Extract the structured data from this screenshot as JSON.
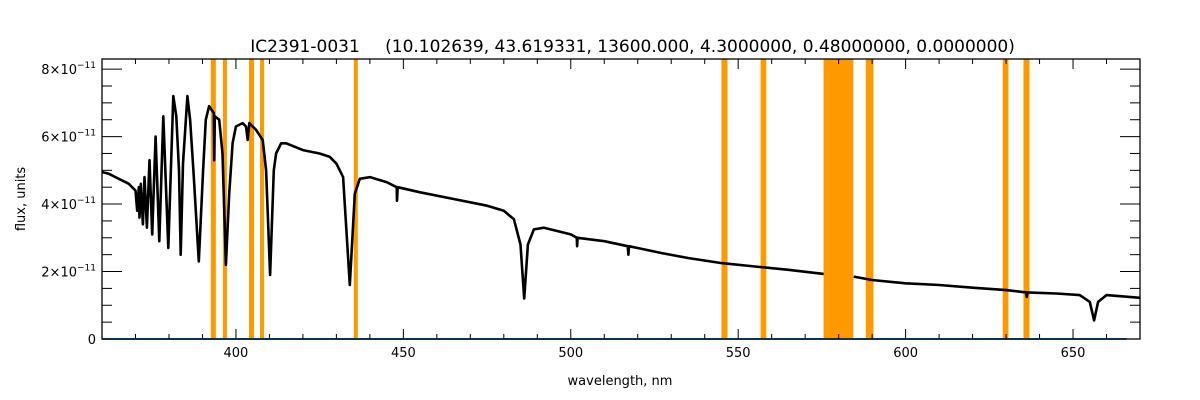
{
  "chart_data": {
    "type": "line",
    "title_object": "IC2391-0031",
    "title_params": "(10.102639, 43.619331, 13600.000, 4.3000000, 0.48000000, 0.0000000)",
    "xlabel": "wavelength, nm",
    "ylabel": "flux, units",
    "xlim": [
      360,
      670
    ],
    "ylim": [
      0,
      8.3e-11
    ],
    "grid": false,
    "x_ticks": [
      400,
      450,
      500,
      550,
      600,
      650
    ],
    "x_tick_labels": [
      "400",
      "450",
      "500",
      "550",
      "600",
      "650"
    ],
    "x_minor_step": 10,
    "y_ticks": [
      0,
      2e-11,
      4e-11,
      6e-11,
      8e-11
    ],
    "y_tick_labels": [
      {
        "base": "0",
        "exp": ""
      },
      {
        "base": "2×10",
        "exp": "−11"
      },
      {
        "base": "4×10",
        "exp": "−11"
      },
      {
        "base": "6×10",
        "exp": "−11"
      },
      {
        "base": "8×10",
        "exp": "−11"
      }
    ],
    "y_minor_step": 5e-12,
    "colors": {
      "spectrum": "#000000",
      "error": "#1f8fff",
      "masked": "#ff9900"
    },
    "masked_bands": [
      [
        392.5,
        394.0
      ],
      [
        396.1,
        397.3
      ],
      [
        403.9,
        405.4
      ],
      [
        407.2,
        408.4
      ],
      [
        435.2,
        436.4
      ],
      [
        545.0,
        546.8
      ],
      [
        556.7,
        558.4
      ],
      [
        575.5,
        584.4
      ],
      [
        588.1,
        590.4
      ],
      [
        629.0,
        630.7
      ],
      [
        635.2,
        637.0
      ]
    ],
    "series": [
      {
        "role": "spectrum",
        "points": [
          [
            360,
            4.95e-11
          ],
          [
            362,
            4.9e-11
          ],
          [
            364,
            4.8e-11
          ],
          [
            366,
            4.7e-11
          ],
          [
            368,
            4.6e-11
          ],
          [
            369,
            4.5e-11
          ],
          [
            370,
            4.4e-11
          ],
          [
            370.5,
            3.8e-11
          ],
          [
            371,
            4.5e-11
          ],
          [
            371.2,
            3.6e-11
          ],
          [
            371.6,
            4.6e-11
          ],
          [
            372.2,
            3.4e-11
          ],
          [
            372.7,
            4.8e-11
          ],
          [
            373.4,
            3.3e-11
          ],
          [
            374.2,
            5.3e-11
          ],
          [
            375.0,
            3.1e-11
          ],
          [
            376.0,
            6e-11
          ],
          [
            377.1,
            2.9e-11
          ],
          [
            378.3,
            6.6e-11
          ],
          [
            379.8,
            2.7e-11
          ],
          [
            381.3,
            7.2e-11
          ],
          [
            382.2,
            6.6e-11
          ],
          [
            383.0,
            5e-11
          ],
          [
            383.5,
            2.5e-11
          ],
          [
            384.2,
            5.2e-11
          ],
          [
            385.5,
            7.2e-11
          ],
          [
            386.3,
            6.5e-11
          ],
          [
            387.3,
            5e-11
          ],
          [
            388.9,
            2.3e-11
          ],
          [
            390.2,
            5e-11
          ],
          [
            391.0,
            6.5e-11
          ],
          [
            392,
            6.9e-11
          ],
          [
            393.4,
            6.7e-11
          ],
          [
            393.5,
            5.3e-11
          ],
          [
            393.7,
            6.6e-11
          ],
          [
            395,
            6.5e-11
          ],
          [
            396,
            5.5e-11
          ],
          [
            397,
            2.2e-11
          ],
          [
            398,
            4.3e-11
          ],
          [
            399,
            5.8e-11
          ],
          [
            400,
            6.3e-11
          ],
          [
            402,
            6.4e-11
          ],
          [
            403,
            6.3e-11
          ],
          [
            403.5,
            5.9e-11
          ],
          [
            404,
            6.4e-11
          ],
          [
            406,
            6.2e-11
          ],
          [
            408,
            5.9e-11
          ],
          [
            409,
            5e-11
          ],
          [
            410.2,
            1.9e-11
          ],
          [
            411.3,
            5e-11
          ],
          [
            412,
            5.5e-11
          ],
          [
            413.5,
            5.8e-11
          ],
          [
            415,
            5.8e-11
          ],
          [
            420,
            5.6e-11
          ],
          [
            425,
            5.5e-11
          ],
          [
            428,
            5.4e-11
          ],
          [
            430,
            5.2e-11
          ],
          [
            432,
            4.8e-11
          ],
          [
            434,
            1.6e-11
          ],
          [
            435.5,
            4.3e-11
          ],
          [
            437,
            4.75e-11
          ],
          [
            440,
            4.8e-11
          ],
          [
            445,
            4.65e-11
          ],
          [
            448,
            4.5e-11
          ],
          [
            448.1,
            4.1e-11
          ],
          [
            448.3,
            4.5e-11
          ],
          [
            455,
            4.35e-11
          ],
          [
            465,
            4.15e-11
          ],
          [
            475,
            3.95e-11
          ],
          [
            480,
            3.8e-11
          ],
          [
            483,
            3.55e-11
          ],
          [
            485,
            2.8e-11
          ],
          [
            486.1,
            1.2e-11
          ],
          [
            487.2,
            2.8e-11
          ],
          [
            489,
            3.25e-11
          ],
          [
            492,
            3.3e-11
          ],
          [
            500,
            3.1e-11
          ],
          [
            501.8,
            3e-11
          ],
          [
            501.9,
            2.75e-11
          ],
          [
            502,
            3e-11
          ],
          [
            510,
            2.9e-11
          ],
          [
            517,
            2.75e-11
          ],
          [
            517.2,
            2.5e-11
          ],
          [
            517.4,
            2.75e-11
          ],
          [
            527,
            2.55e-11
          ],
          [
            535,
            2.4e-11
          ],
          [
            545,
            2.25e-11
          ],
          [
            555,
            2.15e-11
          ],
          [
            565,
            2.05e-11
          ],
          [
            575.5,
            1.93e-11
          ],
          null,
          [
            584.5,
            1.85e-11
          ],
          [
            590,
            1.75e-11
          ],
          [
            600,
            1.65e-11
          ],
          [
            610,
            1.6e-11
          ],
          [
            620,
            1.52e-11
          ],
          [
            630,
            1.45e-11
          ],
          [
            636,
            1.38e-11
          ],
          [
            636.2,
            1.25e-11
          ],
          [
            636.4,
            1.38e-11
          ],
          [
            645,
            1.35e-11
          ],
          [
            652,
            1.3e-11
          ],
          [
            655,
            1.1e-11
          ],
          [
            656.3,
            5.5e-12
          ],
          [
            657.5,
            1.1e-11
          ],
          [
            660,
            1.3e-11
          ],
          [
            670,
            1.22e-11
          ]
        ]
      },
      {
        "role": "error",
        "points": [
          [
            360,
            0
          ],
          [
            666,
            0
          ]
        ]
      }
    ]
  }
}
